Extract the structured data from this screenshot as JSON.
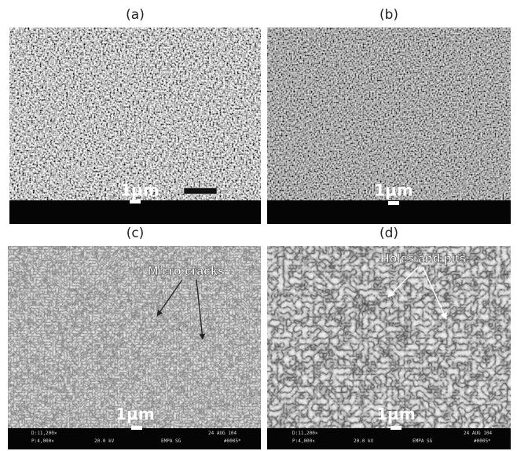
{
  "panels": [
    {
      "label": "(a)",
      "scale_bar": "1µm"
    },
    {
      "label": "(b)",
      "scale_bar": "1µm"
    },
    {
      "label": "(c)",
      "scale_bar": "1µm",
      "annotation": "Micro cracks",
      "info": [
        "D:11,200×",
        "P:4,000×",
        "20.0 kV",
        "EMPA SG",
        "24 AUG 104",
        "#0005*"
      ]
    },
    {
      "label": "(d)",
      "scale_bar": "1µm",
      "annotation": "Holes and pits",
      "info": [
        "D:11,200×",
        "P:4,000×",
        "20.0 kV",
        "EMPA SG",
        "24 AUG 104",
        "#0005*"
      ]
    }
  ]
}
